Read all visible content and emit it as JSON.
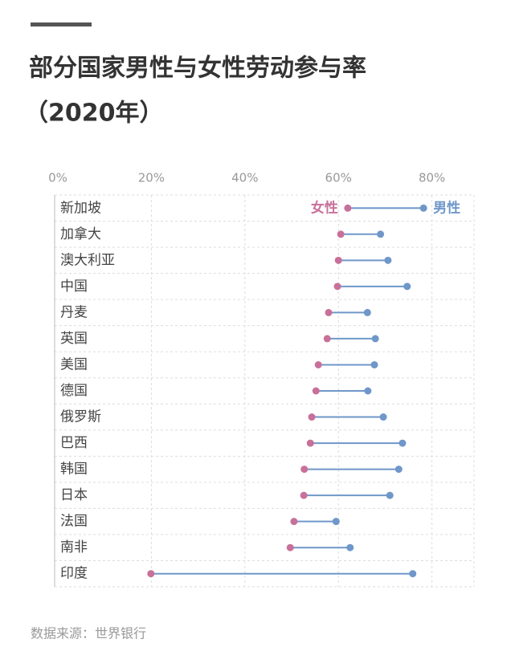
{
  "chart_data": {
    "type": "dumbbell",
    "title": "部分国家男性与女性劳动参与率",
    "subtitle": "（2020年）",
    "source": "数据来源：世界银行",
    "categories": [
      "新加坡",
      "加拿大",
      "澳大利亚",
      "中国",
      "丹麦",
      "英国",
      "美国",
      "德国",
      "俄罗斯",
      "巴西",
      "韩国",
      "日本",
      "法国",
      "南非",
      "印度"
    ],
    "series": [
      {
        "name": "女性",
        "color": "#c8709a",
        "values": [
          62,
          60.5,
          60,
          59.8,
          57.9,
          57.6,
          55.7,
          55.2,
          54.3,
          54,
          52.7,
          52.6,
          50.5,
          49.7,
          19.9
        ]
      },
      {
        "name": "男性",
        "color": "#6f97c9",
        "values": [
          78.2,
          69,
          70.6,
          74.7,
          66.2,
          67.9,
          67.7,
          66.3,
          69.6,
          73.7,
          72.9,
          71,
          59.5,
          62.5,
          75.9
        ]
      }
    ],
    "xlim": [
      0,
      89
    ],
    "xticks": [
      {
        "value": 0,
        "label": "0%"
      },
      {
        "value": 20,
        "label": "20%"
      },
      {
        "value": 40,
        "label": "40%"
      },
      {
        "value": 60,
        "label": "60%"
      },
      {
        "value": 80,
        "label": "80%"
      }
    ],
    "grid": true
  }
}
